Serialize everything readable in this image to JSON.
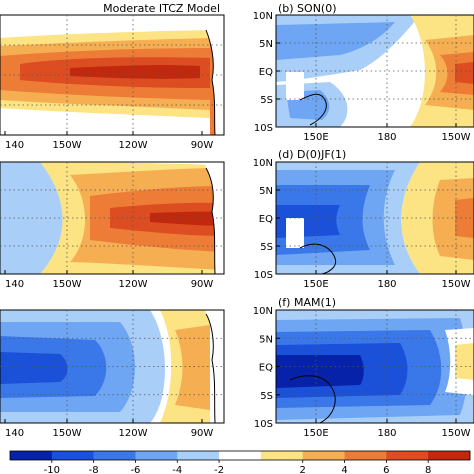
{
  "figure_title": "Moderate ITCZ Model",
  "chart_data": [
    {
      "type": "heatmap",
      "panel": "left-row-1",
      "title": "",
      "xticks": [
        "140",
        "150W",
        "120W",
        "90W"
      ],
      "yticks": [],
      "pattern": "Strong positive anomaly tongue along the equator, maximum (~8-10) centred near 130W, extending west to ~170W; land east of 85W."
    },
    {
      "type": "heatmap",
      "panel": "right-row-1",
      "title": "(b) SON(0)",
      "xticks": [
        "150E",
        "180",
        "150W"
      ],
      "yticks": [
        "10N",
        "5N",
        "EQ",
        "5S",
        "10S"
      ],
      "pattern": "Weak negative anomalies (-2 to -6) over the western Pacific, positive anomalies (up to 8) growing east of 170W along the equator."
    },
    {
      "type": "heatmap",
      "panel": "left-row-2",
      "title": "",
      "xticks": [
        "140",
        "150W",
        "120W",
        "90W"
      ],
      "yticks": [],
      "pattern": "Positive equatorial tongue, strongest (~8-10) between 120W and 90W, broad warm region up to 4 away from equator."
    },
    {
      "type": "heatmap",
      "panel": "right-row-2",
      "title": "(d) D(0)JF(1)",
      "xticks": [
        "150E",
        "180",
        "150W"
      ],
      "yticks": [
        "10N",
        "5N",
        "EQ",
        "5S",
        "10S"
      ],
      "pattern": "Negative anomalies (-4 to -8) in the west, positive anomalies (up to 8) east of 165W on the equator."
    },
    {
      "type": "heatmap",
      "panel": "left-row-3",
      "title": "",
      "xticks": [
        "140",
        "150W",
        "120W",
        "90W"
      ],
      "yticks": [],
      "pattern": "Negative anomalies (down to -10) west of 150W on the equator, positive anomalies (2-6) east of 130W."
    },
    {
      "type": "heatmap",
      "panel": "right-row-3",
      "title": "(f) MAM(1)",
      "xticks": [
        "150E",
        "180",
        "150W"
      ],
      "yticks": [
        "10N",
        "5N",
        "EQ",
        "5S",
        "10S"
      ],
      "pattern": "Widespread negative anomalies (-4 to -10) over the western and central Pacific, weak positive near 150W."
    }
  ],
  "colorbar": {
    "ticks": [
      "-10",
      "-8",
      "-6",
      "-4",
      "-2",
      "2",
      "4",
      "6",
      "8"
    ],
    "levels": [
      -10,
      -8,
      -6,
      -4,
      -2,
      2,
      4,
      6,
      8
    ],
    "colors": [
      "#0522a8",
      "#1b50d8",
      "#3a78ea",
      "#6ea6f4",
      "#a9cff8",
      "#ffffff",
      "#fce383",
      "#f6ae53",
      "#ed7c37",
      "#dc4d22",
      "#c0290e"
    ]
  }
}
